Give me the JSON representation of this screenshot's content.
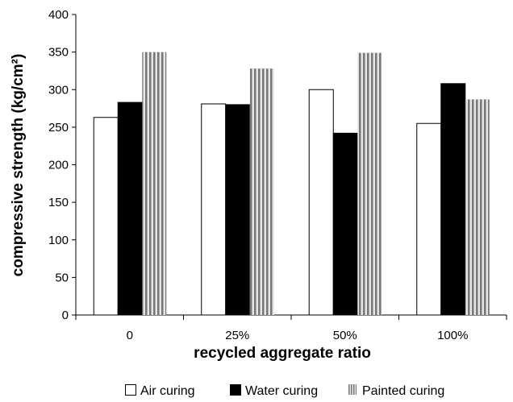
{
  "chart_data": {
    "type": "bar",
    "categories": [
      "0",
      "25%",
      "50%",
      "100%"
    ],
    "series": [
      {
        "name": "Air curing",
        "values": [
          263,
          281,
          300,
          255
        ],
        "style": "white"
      },
      {
        "name": "Water curing",
        "values": [
          283,
          280,
          242,
          308
        ],
        "style": "black"
      },
      {
        "name": "Painted curing",
        "values": [
          350,
          328,
          349,
          287
        ],
        "style": "vertical-stripes"
      }
    ],
    "xlabel": "recycled aggregate ratio",
    "ylabel": "compressive strength (kg/cm²)",
    "ylim": [
      0,
      400
    ],
    "yticks": [
      "0",
      "50",
      "100",
      "150",
      "200",
      "250",
      "300",
      "350",
      "400"
    ],
    "grid": false,
    "legend_position": "bottom",
    "colors": {
      "air": "#ffffff",
      "water": "#000000",
      "stripe_dark": "#777777",
      "stripe_light": "#e6e6e6",
      "outline": "#000000"
    }
  }
}
